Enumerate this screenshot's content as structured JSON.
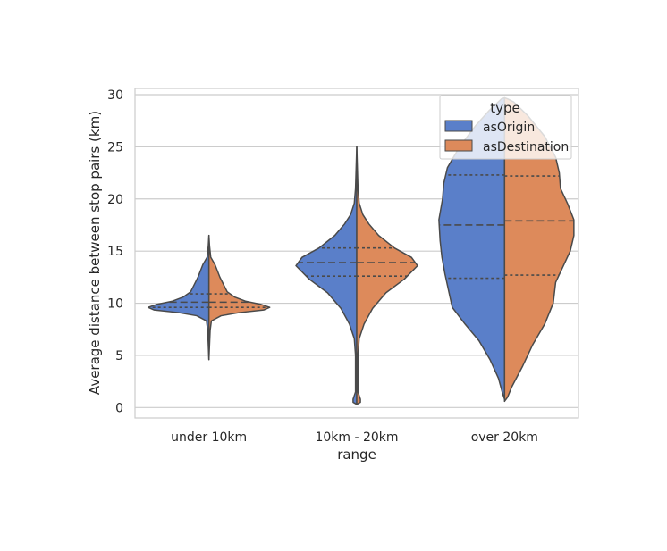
{
  "chart_data": {
    "type": "violin",
    "split": true,
    "inner": "quartile",
    "xlabel": "range",
    "ylabel": "Average distance between stop pairs (km)",
    "categories": [
      "under 10km",
      "10km - 20km",
      "over 20km"
    ],
    "ylim": [
      -1,
      30.6
    ],
    "yticks": [
      "0",
      "5",
      "10",
      "15",
      "20",
      "25",
      "30"
    ],
    "grid": "horizontal",
    "legend": {
      "title": "type",
      "placement": "upper right",
      "entries": [
        "asOrigin",
        "asDestination"
      ]
    },
    "series": [
      {
        "name": "asOrigin",
        "color": "#5a7fc9",
        "quartiles": [
          [
            9.6,
            10.1,
            10.9
          ],
          [
            12.6,
            13.9,
            15.3
          ],
          [
            12.4,
            17.5,
            22.3
          ]
        ],
        "profiles": [
          [
            [
              4.6,
              0
            ],
            [
              7.4,
              0.02
            ],
            [
              8.3,
              0.04
            ],
            [
              8.8,
              0.2
            ],
            [
              9.1,
              0.5
            ],
            [
              9.35,
              0.9
            ],
            [
              9.6,
              1.0
            ],
            [
              9.9,
              0.85
            ],
            [
              10.2,
              0.6
            ],
            [
              10.6,
              0.42
            ],
            [
              11.1,
              0.3
            ],
            [
              11.8,
              0.24
            ],
            [
              12.5,
              0.18
            ],
            [
              13.1,
              0.14
            ],
            [
              13.7,
              0.1
            ],
            [
              14.4,
              0.03
            ],
            [
              15.5,
              0.01
            ],
            [
              16.5,
              0
            ]
          ],
          [
            [
              0.3,
              0
            ],
            [
              0.5,
              0.06
            ],
            [
              0.8,
              0.06
            ],
            [
              1.5,
              0.02
            ],
            [
              5,
              0.02
            ],
            [
              6.6,
              0.04
            ],
            [
              8,
              0.12
            ],
            [
              9.5,
              0.26
            ],
            [
              11,
              0.48
            ],
            [
              12.3,
              0.78
            ],
            [
              13.6,
              1.0
            ],
            [
              14.4,
              0.9
            ],
            [
              15.3,
              0.62
            ],
            [
              16.5,
              0.36
            ],
            [
              17.6,
              0.2
            ],
            [
              18.5,
              0.1
            ],
            [
              19.6,
              0.04
            ],
            [
              21,
              0.02
            ],
            [
              23,
              0.01
            ],
            [
              25,
              0
            ]
          ],
          [
            [
              0.8,
              0
            ],
            [
              1.3,
              0.03
            ],
            [
              2.8,
              0.1
            ],
            [
              4.6,
              0.24
            ],
            [
              6.4,
              0.42
            ],
            [
              8,
              0.65
            ],
            [
              9.6,
              0.86
            ],
            [
              11.2,
              0.92
            ],
            [
              12.8,
              0.98
            ],
            [
              14.4,
              1.03
            ],
            [
              16,
              1.06
            ],
            [
              18,
              1.08
            ],
            [
              20,
              1.02
            ],
            [
              21.5,
              1.0
            ],
            [
              23,
              0.94
            ],
            [
              25,
              0.74
            ],
            [
              27,
              0.48
            ],
            [
              28.5,
              0.25
            ],
            [
              29.6,
              0.05
            ],
            [
              29.7,
              0
            ]
          ]
        ]
      },
      {
        "name": "asDestination",
        "color": "#dd8a5b",
        "quartiles": [
          [
            9.6,
            10.1,
            10.9
          ],
          [
            12.6,
            13.9,
            15.3
          ],
          [
            12.7,
            17.9,
            22.2
          ]
        ],
        "profiles": [
          [
            [
              4.6,
              0
            ],
            [
              7.4,
              0.02
            ],
            [
              8.3,
              0.04
            ],
            [
              8.8,
              0.2
            ],
            [
              9.1,
              0.5
            ],
            [
              9.35,
              0.9
            ],
            [
              9.6,
              1.0
            ],
            [
              9.9,
              0.85
            ],
            [
              10.2,
              0.6
            ],
            [
              10.6,
              0.42
            ],
            [
              11.1,
              0.3
            ],
            [
              11.8,
              0.24
            ],
            [
              12.5,
              0.18
            ],
            [
              13.1,
              0.14
            ],
            [
              13.7,
              0.1
            ],
            [
              14.4,
              0.03
            ],
            [
              15.5,
              0.01
            ],
            [
              16.5,
              0
            ]
          ],
          [
            [
              0.3,
              0
            ],
            [
              0.5,
              0.06
            ],
            [
              0.8,
              0.06
            ],
            [
              1.5,
              0.02
            ],
            [
              5,
              0.02
            ],
            [
              6.6,
              0.04
            ],
            [
              8,
              0.12
            ],
            [
              9.5,
              0.26
            ],
            [
              11,
              0.48
            ],
            [
              12.3,
              0.78
            ],
            [
              13.6,
              1.0
            ],
            [
              14.4,
              0.9
            ],
            [
              15.3,
              0.62
            ],
            [
              16.5,
              0.36
            ],
            [
              17.6,
              0.2
            ],
            [
              18.5,
              0.1
            ],
            [
              19.6,
              0.04
            ],
            [
              21,
              0.02
            ],
            [
              23,
              0.01
            ],
            [
              25,
              0
            ]
          ],
          [
            [
              0.6,
              0
            ],
            [
              1.0,
              0.05
            ],
            [
              2.0,
              0.12
            ],
            [
              4.0,
              0.3
            ],
            [
              6.0,
              0.46
            ],
            [
              8.0,
              0.66
            ],
            [
              10.0,
              0.8
            ],
            [
              12.0,
              0.84
            ],
            [
              13.5,
              0.96
            ],
            [
              15,
              1.08
            ],
            [
              16.5,
              1.14
            ],
            [
              18,
              1.14
            ],
            [
              19.5,
              1.04
            ],
            [
              21,
              0.92
            ],
            [
              22.5,
              0.9
            ],
            [
              24,
              0.84
            ],
            [
              26,
              0.66
            ],
            [
              28,
              0.38
            ],
            [
              29.3,
              0.15
            ],
            [
              29.6,
              0.05
            ],
            [
              29.7,
              0
            ]
          ]
        ]
      }
    ]
  }
}
